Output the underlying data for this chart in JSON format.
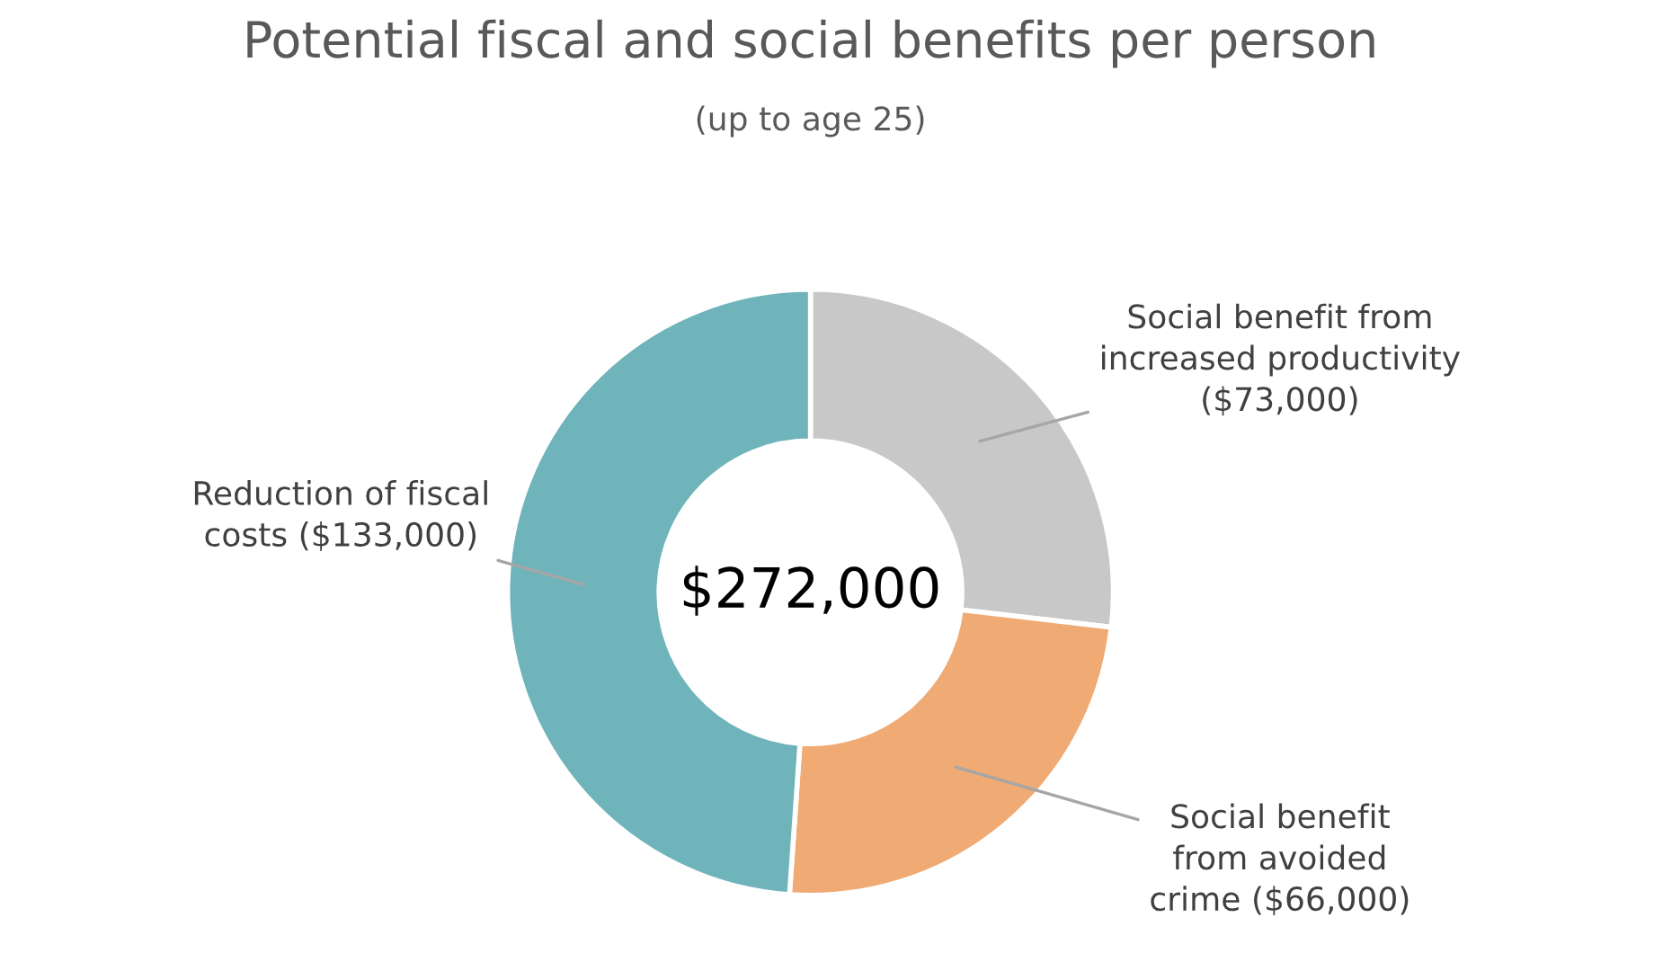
{
  "chart_data": {
    "type": "donut",
    "title": "Potential fiscal and social benefits per person",
    "subtitle": "(up to age 25)",
    "categories": [
      "Social benefit from\nincreased productivity\n($73,000)",
      "Social benefit\nfrom avoided\ncrime ($66,000)",
      "Reduction of fiscal\ncosts ($133,000)"
    ],
    "values": [
      73000,
      66000,
      133000
    ],
    "colors": [
      "#c8c8c9",
      "#f0aa74",
      "#6fb3bb"
    ],
    "annotations": [
      "$272,000"
    ]
  }
}
